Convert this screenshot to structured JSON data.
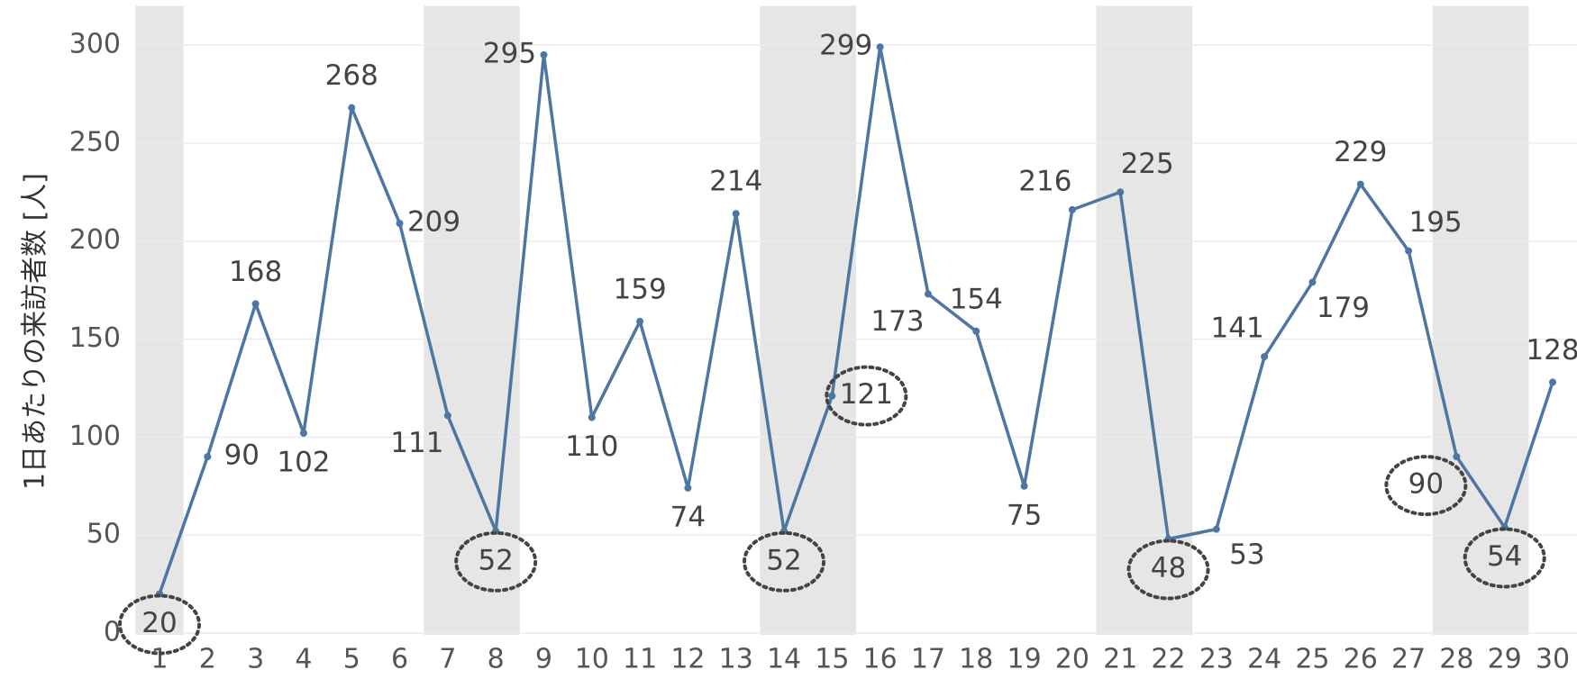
{
  "chart_data": {
    "type": "line",
    "y_label": "1日あたりの来訪者数 [人]",
    "categories": [
      "1",
      "2",
      "3",
      "4",
      "5",
      "6",
      "7",
      "8",
      "9",
      "10",
      "11",
      "12",
      "13",
      "14",
      "15",
      "16",
      "17",
      "18",
      "19",
      "20",
      "21",
      "22",
      "23",
      "24",
      "25",
      "26",
      "27",
      "28",
      "29",
      "30"
    ],
    "series": [
      {
        "name": "来訪者数",
        "color": "#4e76a2",
        "values": [
          20,
          90,
          168,
          102,
          268,
          209,
          111,
          52,
          295,
          110,
          159,
          74,
          214,
          52,
          121,
          299,
          173,
          154,
          75,
          216,
          225,
          48,
          53,
          141,
          179,
          229,
          195,
          90,
          54,
          128
        ]
      }
    ],
    "ylim": [
      0,
      320
    ],
    "yticks": [
      0,
      50,
      100,
      150,
      200,
      250,
      300
    ],
    "grid": true
  }
}
